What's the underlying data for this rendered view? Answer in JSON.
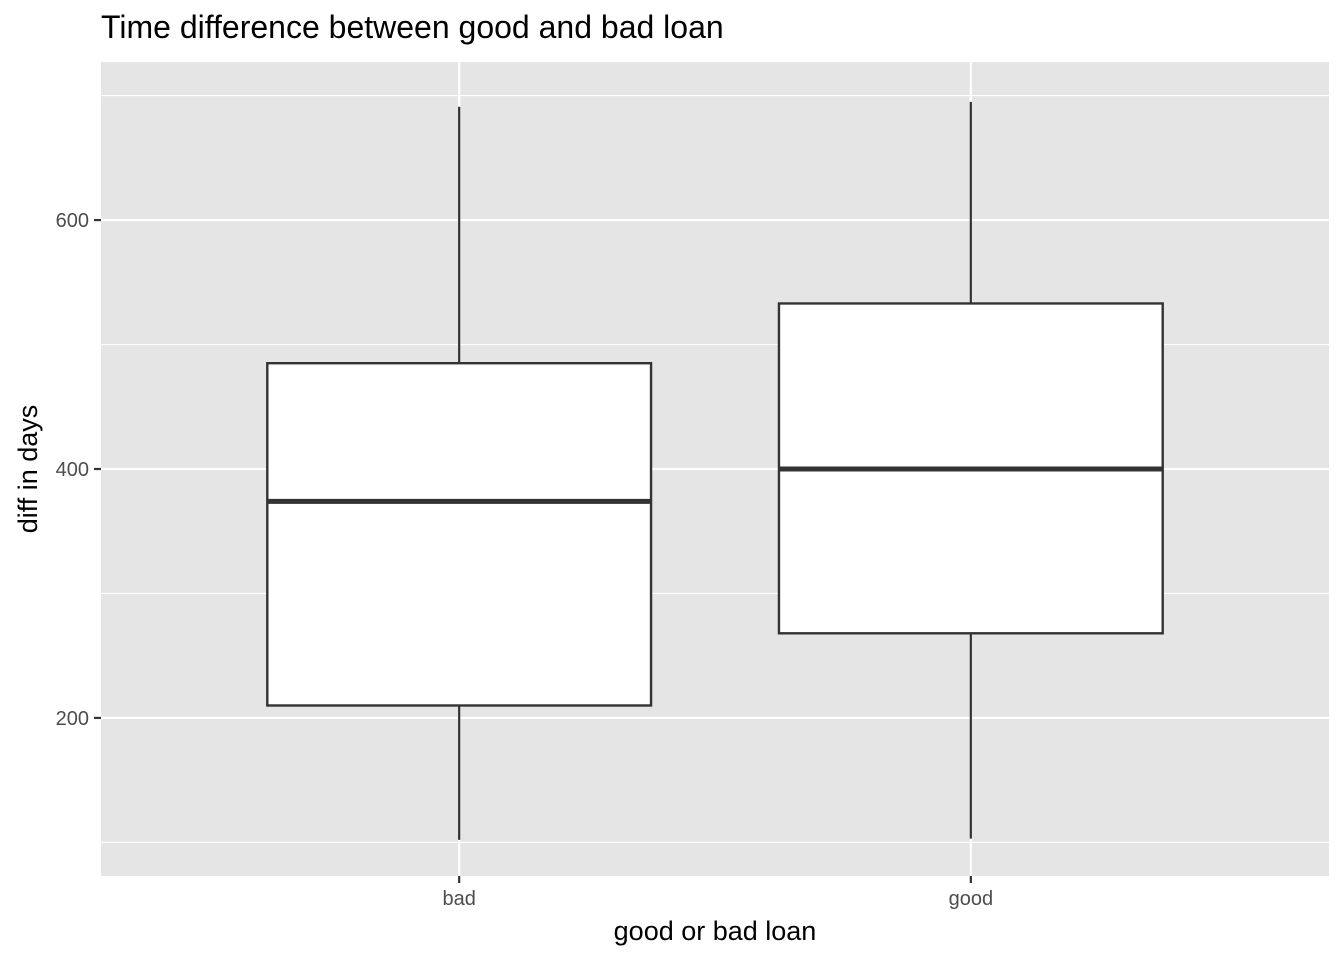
{
  "chart_data": {
    "type": "boxplot",
    "title": "Time difference between good and bad loan",
    "xlabel": "good or bad loan",
    "ylabel": "diff in days",
    "categories": [
      "bad",
      "good"
    ],
    "boxes": [
      {
        "category": "bad",
        "min": 102,
        "q1": 210,
        "median": 374,
        "q3": 485,
        "max": 691
      },
      {
        "category": "good",
        "min": 103,
        "q1": 268,
        "median": 400,
        "q3": 533,
        "max": 695
      }
    ],
    "ylim": [
      73,
      727
    ],
    "yticks": [
      200,
      400,
      600
    ],
    "ytick_labels": [
      "200",
      "400",
      "600"
    ],
    "y_minor_ticks": [
      100,
      300,
      500,
      700
    ],
    "grid": true,
    "colors": {
      "panel_background": "#e5e5e5",
      "grid": "#ffffff",
      "box_fill": "#ffffff",
      "box_stroke": "#333333",
      "tick_text": "#4d4d4d",
      "tick_mark": "#333333"
    }
  }
}
